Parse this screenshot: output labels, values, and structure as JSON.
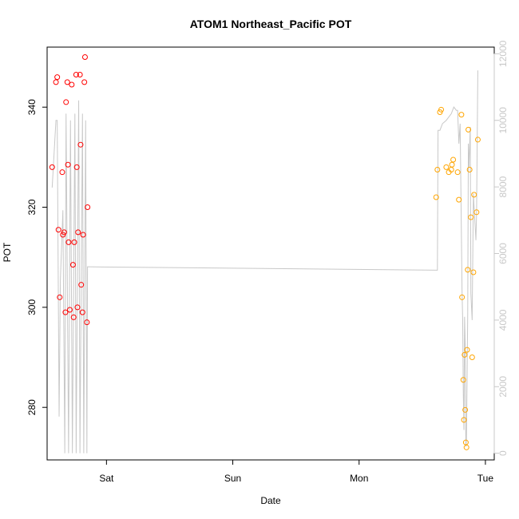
{
  "chart_data": {
    "type": "scatter",
    "title": "ATOM1 Northeast_Pacific POT",
    "xlabel": "Date",
    "ylabel": "POT",
    "x_ticks": [
      "Sat",
      "Sun",
      "Mon",
      "Tue"
    ],
    "x_tick_values": [
      1.0,
      2.0,
      3.0,
      4.0
    ],
    "xlim": [
      0.53,
      4.07
    ],
    "ylim": [
      269.5,
      352.0
    ],
    "y_ticks": [
      280,
      300,
      320,
      340
    ],
    "y2lim": [
      -200,
      12200
    ],
    "y2_ticks": [
      0,
      2000,
      4000,
      6000,
      8000,
      10000,
      12000
    ],
    "grid": false,
    "colors": {
      "group1": "#ff0000",
      "group2": "#ffa500",
      "line": "#c8c8c8"
    },
    "series": [
      {
        "axis": "left",
        "color": "#ff0000",
        "points": [
          [
            0.57,
            328
          ],
          [
            0.6,
            345
          ],
          [
            0.61,
            346
          ],
          [
            0.62,
            315.5
          ],
          [
            0.63,
            302
          ],
          [
            0.65,
            327
          ],
          [
            0.655,
            314.5
          ],
          [
            0.665,
            315
          ],
          [
            0.675,
            299
          ],
          [
            0.68,
            341
          ],
          [
            0.69,
            345
          ],
          [
            0.695,
            328.5
          ],
          [
            0.7,
            313
          ],
          [
            0.71,
            299.5
          ],
          [
            0.725,
            344.5
          ],
          [
            0.735,
            308.5
          ],
          [
            0.74,
            298
          ],
          [
            0.745,
            313
          ],
          [
            0.76,
            346.5
          ],
          [
            0.765,
            328
          ],
          [
            0.77,
            300
          ],
          [
            0.775,
            315
          ],
          [
            0.79,
            346.5
          ],
          [
            0.795,
            332.5
          ],
          [
            0.8,
            304.5
          ],
          [
            0.81,
            299
          ],
          [
            0.815,
            314.5
          ],
          [
            0.825,
            345
          ],
          [
            0.83,
            350
          ],
          [
            0.845,
            297
          ],
          [
            0.85,
            320
          ]
        ]
      },
      {
        "axis": "left",
        "color": "#ffa500",
        "points": [
          [
            3.61,
            322
          ],
          [
            3.62,
            327.5
          ],
          [
            3.64,
            339
          ],
          [
            3.65,
            339.5
          ],
          [
            3.69,
            328
          ],
          [
            3.71,
            327
          ],
          [
            3.73,
            327.5
          ],
          [
            3.735,
            328.5
          ],
          [
            3.745,
            329.5
          ],
          [
            3.78,
            327
          ],
          [
            3.79,
            321.5
          ],
          [
            3.81,
            338.5
          ],
          [
            3.815,
            302
          ],
          [
            3.825,
            285.5
          ],
          [
            3.83,
            277.5
          ],
          [
            3.835,
            290.5
          ],
          [
            3.84,
            279.5
          ],
          [
            3.845,
            273
          ],
          [
            3.85,
            272
          ],
          [
            3.855,
            291.5
          ],
          [
            3.86,
            307.5
          ],
          [
            3.865,
            335.5
          ],
          [
            3.875,
            327.5
          ],
          [
            3.885,
            318
          ],
          [
            3.895,
            290
          ],
          [
            3.905,
            307
          ],
          [
            3.91,
            322.5
          ],
          [
            3.93,
            319
          ],
          [
            3.94,
            333.5
          ]
        ]
      },
      {
        "axis": "right",
        "type": "line",
        "color": "#c8c8c8",
        "points": [
          [
            0.57,
            7980
          ],
          [
            0.6,
            10000
          ],
          [
            0.61,
            10000
          ],
          [
            0.625,
            1100
          ],
          [
            0.635,
            5200
          ],
          [
            0.655,
            7300
          ],
          [
            0.67,
            0
          ],
          [
            0.68,
            10200
          ],
          [
            0.7,
            0
          ],
          [
            0.715,
            10000
          ],
          [
            0.73,
            0
          ],
          [
            0.75,
            10200
          ],
          [
            0.76,
            0
          ],
          [
            0.78,
            10600
          ],
          [
            0.79,
            0
          ],
          [
            0.81,
            10200
          ],
          [
            0.82,
            0
          ],
          [
            0.835,
            10000
          ],
          [
            0.845,
            0
          ],
          [
            0.85,
            5600
          ],
          [
            0.855,
            5600
          ],
          [
            0.86,
            5600
          ],
          [
            3.62,
            5500
          ],
          [
            3.625,
            9700
          ],
          [
            3.64,
            9700
          ],
          [
            3.66,
            9900
          ],
          [
            3.69,
            10000
          ],
          [
            3.71,
            10100
          ],
          [
            3.73,
            10200
          ],
          [
            3.74,
            10300
          ],
          [
            3.75,
            10400
          ],
          [
            3.77,
            10300
          ],
          [
            3.78,
            10300
          ],
          [
            3.79,
            9300
          ],
          [
            3.8,
            9900
          ],
          [
            3.815,
            4900
          ],
          [
            3.82,
            4000
          ],
          [
            3.825,
            1800
          ],
          [
            3.83,
            700
          ],
          [
            3.835,
            4100
          ],
          [
            3.84,
            3300
          ],
          [
            3.845,
            200
          ],
          [
            3.85,
            400
          ],
          [
            3.86,
            4200
          ],
          [
            3.865,
            9300
          ],
          [
            3.87,
            8600
          ],
          [
            3.88,
            9800
          ],
          [
            3.885,
            4800
          ],
          [
            3.895,
            4000
          ],
          [
            3.905,
            7800
          ],
          [
            3.91,
            7400
          ],
          [
            3.925,
            6400
          ],
          [
            3.93,
            7200
          ],
          [
            3.94,
            11500
          ]
        ]
      }
    ]
  }
}
